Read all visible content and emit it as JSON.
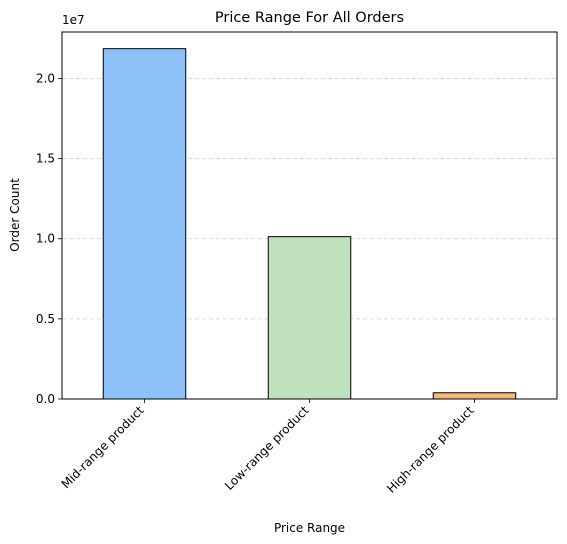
{
  "chart_data": {
    "type": "bar",
    "title": "Price Range For All Orders",
    "xlabel": "Price Range",
    "ylabel": "Order Count",
    "y_offset_label": "1e7",
    "categories": [
      "Mid-range product",
      "Low-range product",
      "High-range product"
    ],
    "values": [
      21860000,
      10130000,
      390000
    ],
    "bar_colors": [
      "#8ec1f7",
      "#bfe1bd",
      "#f4b87a"
    ],
    "edge_color": "#000000",
    "ylim": [
      0,
      22900000
    ],
    "yticks": [
      0,
      5000000,
      10000000,
      15000000,
      20000000
    ],
    "ytick_labels": [
      "0.0",
      "0.5",
      "1.0",
      "1.5",
      "2.0"
    ],
    "grid": "y-dashed",
    "legend": "none"
  }
}
